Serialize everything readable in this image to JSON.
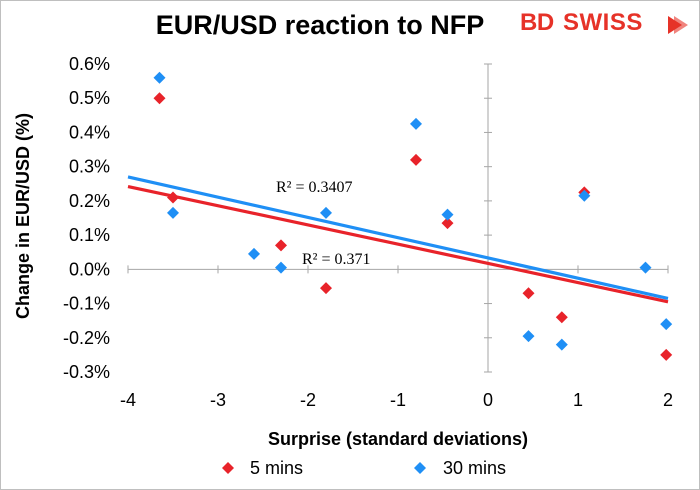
{
  "chart_data": {
    "type": "scatter",
    "title": "EUR/USD reaction to NFP",
    "xlabel": "Surprise (standard deviations)",
    "ylabel": "Change in EUR/USD  (%)",
    "xlim": [
      -4,
      2
    ],
    "ylim": [
      -0.3,
      0.6
    ],
    "x_ticks": [
      -4,
      -3,
      -2,
      -1,
      0,
      1,
      2
    ],
    "x_tick_labels": [
      "-4",
      "-3",
      "-2",
      "-1",
      "0",
      "1",
      "2"
    ],
    "y_ticks": [
      -0.3,
      -0.2,
      -0.1,
      0.0,
      0.1,
      0.2,
      0.3,
      0.4,
      0.5,
      0.6
    ],
    "y_tick_labels": [
      "-0.3%",
      "-0.2%",
      "-0.1%",
      "0.0%",
      "0.1%",
      "0.2%",
      "0.3%",
      "0.4%",
      "0.5%",
      "0.6%"
    ],
    "grid": false,
    "legend_position": "bottom",
    "series": [
      {
        "name": "5 mins",
        "color": "#e8232a",
        "marker": "diamond",
        "points": [
          [
            -3.65,
            0.5
          ],
          [
            -3.5,
            0.21
          ],
          [
            -2.3,
            0.07
          ],
          [
            -1.8,
            -0.055
          ],
          [
            -0.8,
            0.32
          ],
          [
            -0.45,
            0.135
          ],
          [
            0.45,
            -0.07
          ],
          [
            0.82,
            -0.14
          ],
          [
            1.07,
            0.225
          ],
          [
            1.98,
            -0.25
          ]
        ],
        "trendline": {
          "x": [
            -4,
            2
          ],
          "y": [
            0.242,
            -0.095
          ]
        },
        "r2_label": "R² = 0.371"
      },
      {
        "name": "30 mins",
        "color": "#1f8ff5",
        "marker": "diamond",
        "points": [
          [
            -3.65,
            0.56
          ],
          [
            -3.5,
            0.165
          ],
          [
            -2.6,
            0.045
          ],
          [
            -2.3,
            0.005
          ],
          [
            -1.8,
            0.165
          ],
          [
            -0.8,
            0.425
          ],
          [
            -0.45,
            0.16
          ],
          [
            0.45,
            -0.195
          ],
          [
            0.82,
            -0.22
          ],
          [
            1.07,
            0.215
          ],
          [
            1.75,
            0.005
          ],
          [
            1.98,
            -0.16
          ]
        ],
        "trendline": {
          "x": [
            -4,
            2
          ],
          "y": [
            0.27,
            -0.085
          ]
        },
        "r2_label": "R² = 0.3407"
      }
    ]
  },
  "logo": {
    "bd": "BD",
    "swiss": "SWISS"
  }
}
